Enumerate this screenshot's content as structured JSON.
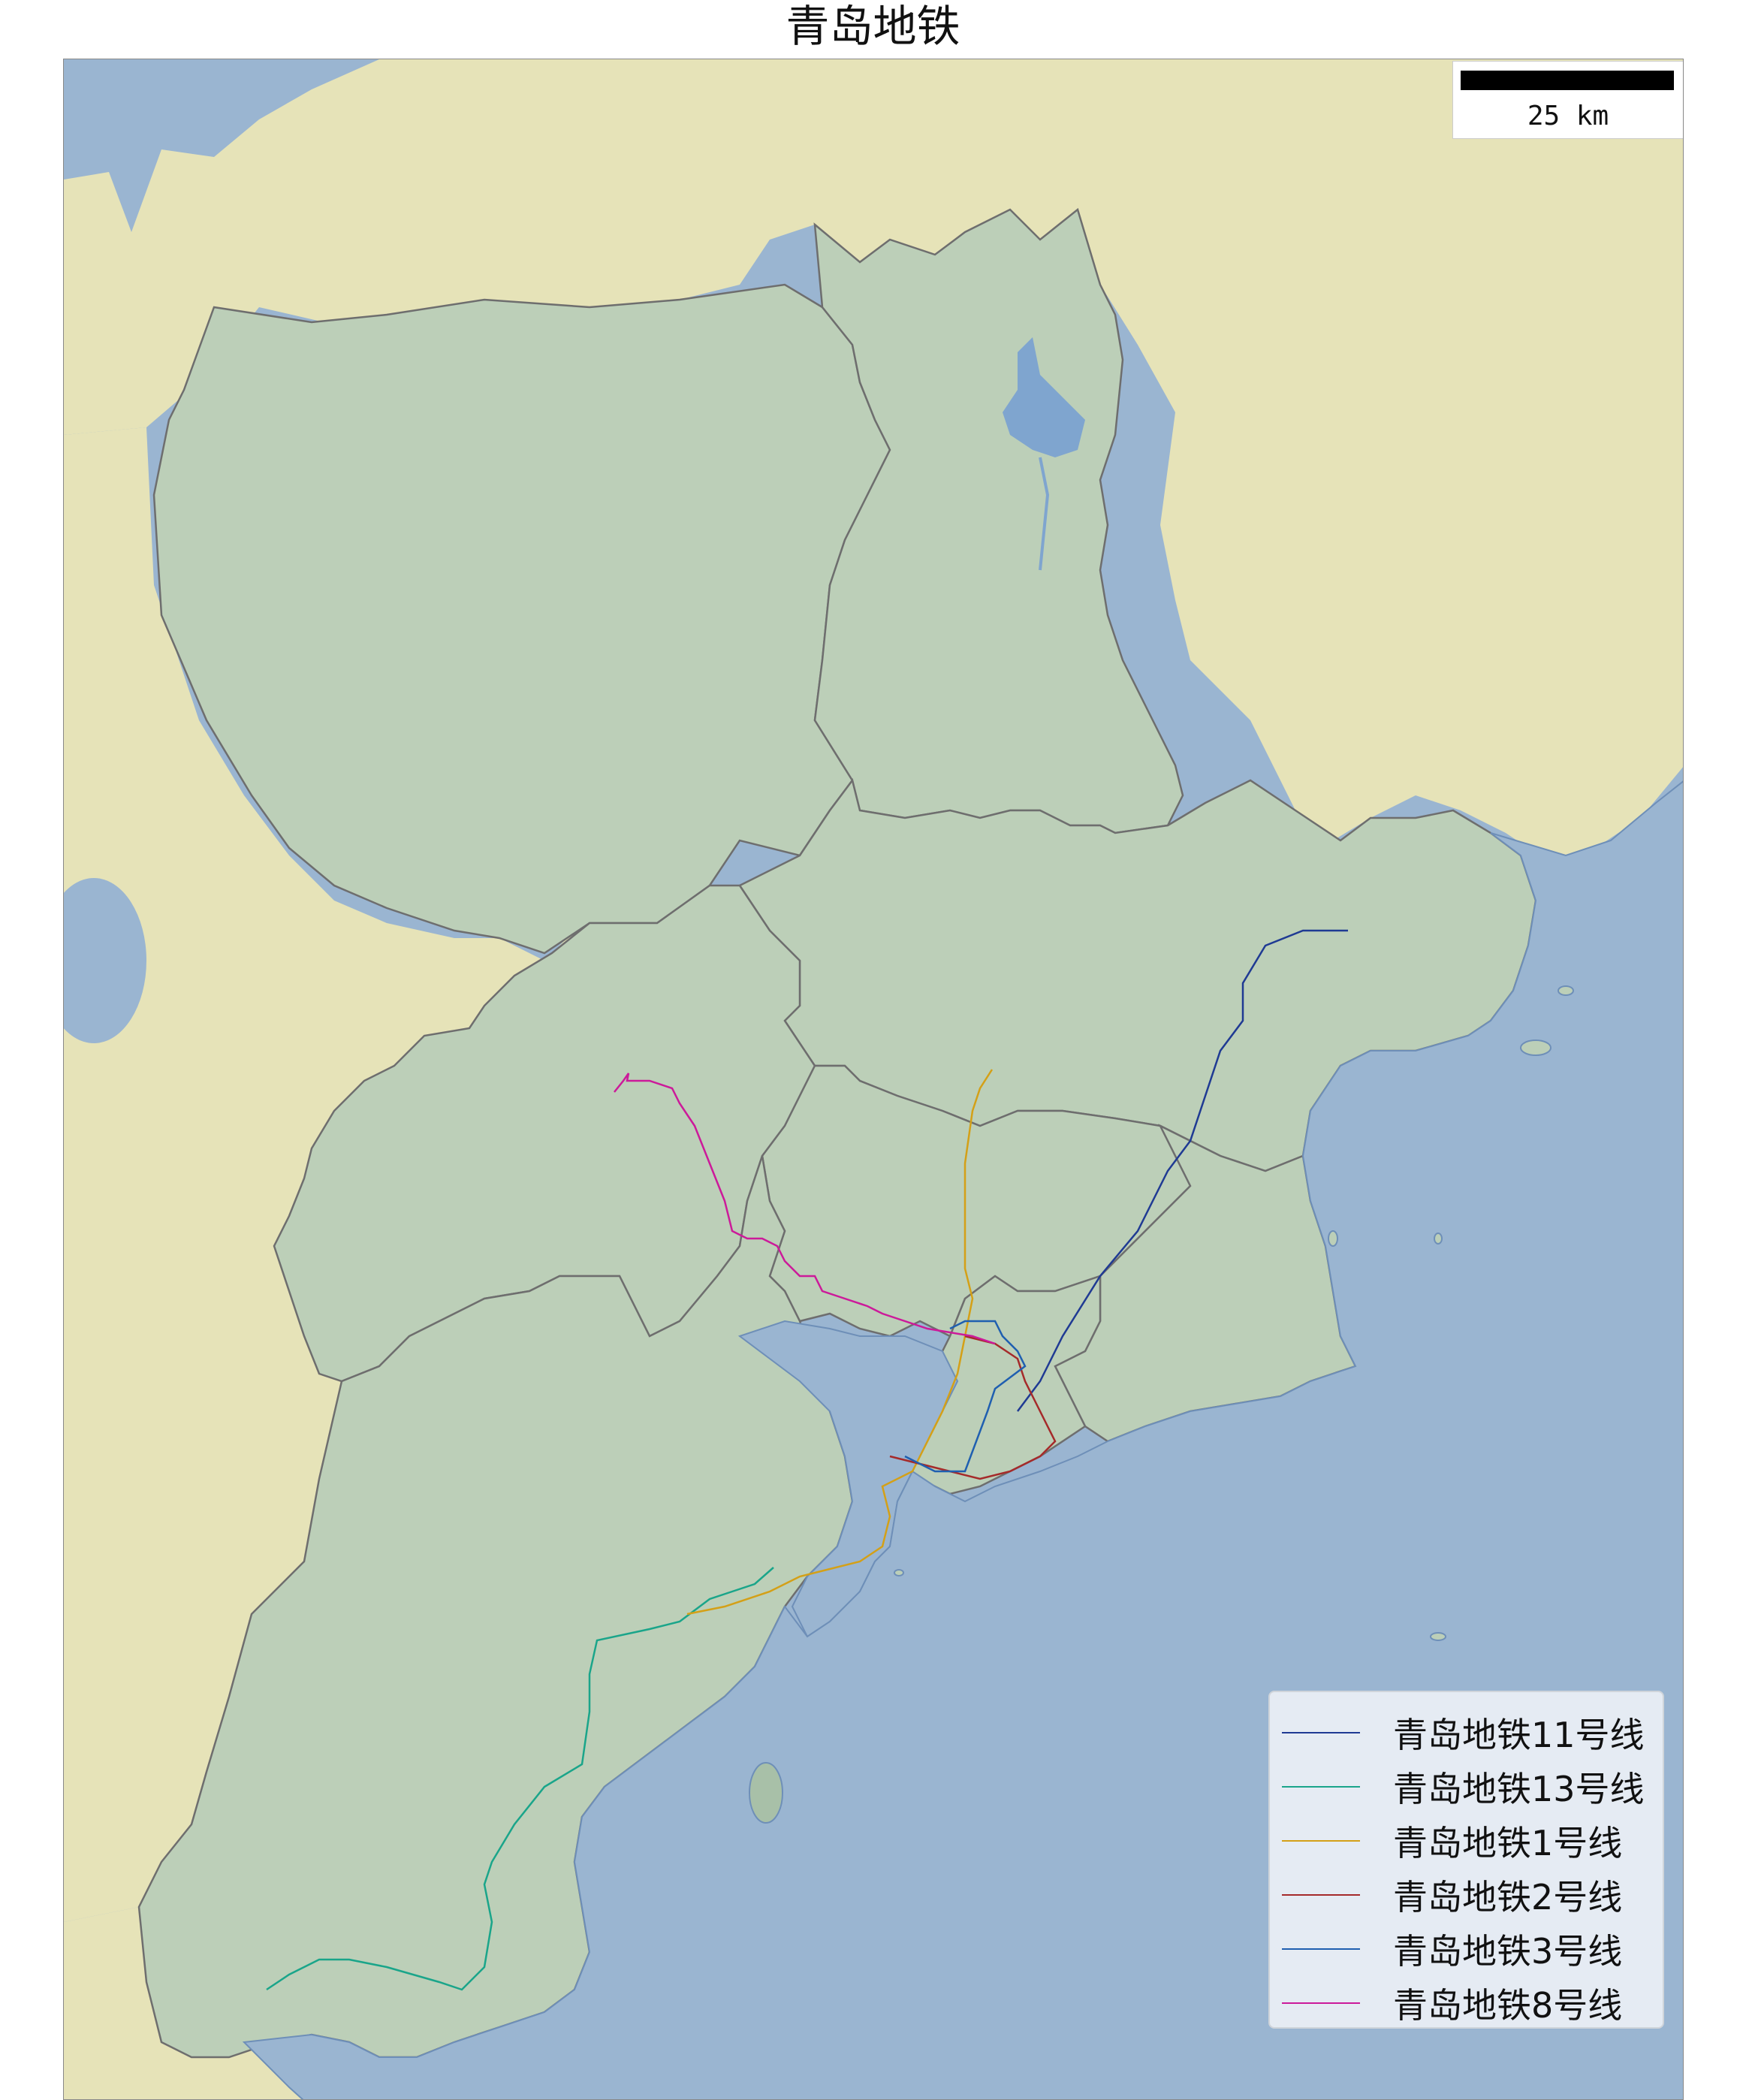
{
  "title": "青岛地铁",
  "scale_bar": {
    "label": "25 km"
  },
  "colors": {
    "sea": "#9ab5d1",
    "land_outside": "#e6e3b8",
    "land_region": "#bccfb8",
    "boundary": "#6e6e6e",
    "lake": "#7fa5cf"
  },
  "legend": {
    "items": [
      {
        "label": "青岛地铁11号线",
        "color": "#1f3a93"
      },
      {
        "label": "青岛地铁13号线",
        "color": "#1aa58a"
      },
      {
        "label": "青岛地铁1号线",
        "color": "#d4a017"
      },
      {
        "label": "青岛地铁2号线",
        "color": "#a52a2a"
      },
      {
        "label": "青岛地铁3号线",
        "color": "#1f5fb0"
      },
      {
        "label": "青岛地铁8号线",
        "color": "#cc1a9a"
      }
    ]
  }
}
